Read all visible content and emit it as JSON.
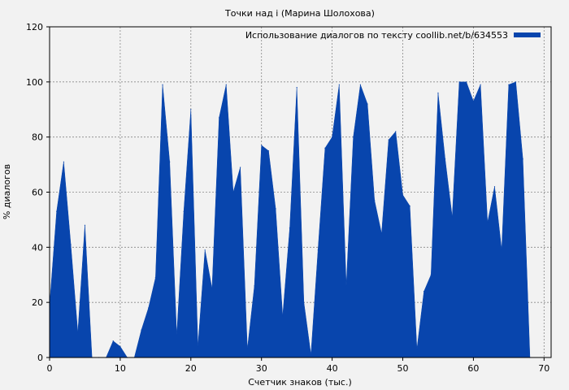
{
  "chart_data": {
    "type": "area",
    "title": "Точки над i (Марина Шолохова)",
    "xlabel": "Счетчик знаков (тыс.)",
    "ylabel": "% диалогов",
    "xlim": [
      0,
      71
    ],
    "ylim": [
      0,
      120
    ],
    "xticks": [
      0,
      10,
      20,
      30,
      40,
      50,
      60,
      70
    ],
    "yticks": [
      0,
      20,
      40,
      60,
      80,
      100,
      120
    ],
    "grid": true,
    "legend_position": "top-right",
    "colors": {
      "series": "#0845ad",
      "background": "#f2f2f2",
      "plot_background": "#f2f2f2",
      "grid": "#888888"
    },
    "series": [
      {
        "name": "Использование диалогов по тексту coollib.net/b/634553",
        "x": [
          0,
          1,
          2,
          3,
          4,
          5,
          6,
          7,
          8,
          9,
          10,
          11,
          12,
          13,
          14,
          15,
          16,
          17,
          18,
          19,
          20,
          21,
          22,
          23,
          24,
          25,
          26,
          27,
          28,
          29,
          30,
          31,
          32,
          33,
          34,
          35,
          36,
          37,
          38,
          39,
          40,
          41,
          42,
          43,
          44,
          45,
          46,
          47,
          48,
          49,
          50,
          51,
          52,
          53,
          54,
          55,
          56,
          57,
          58,
          59,
          60,
          61,
          62,
          63,
          64,
          65,
          66,
          67,
          68
        ],
        "y": [
          19,
          53,
          71,
          41,
          9,
          48,
          0,
          0,
          0,
          6,
          4,
          0,
          0,
          10,
          18,
          29,
          99,
          71,
          8,
          53,
          90,
          4,
          39,
          25,
          87,
          99,
          60,
          69,
          3,
          26,
          77,
          75,
          54,
          15,
          47,
          98,
          20,
          1,
          39,
          76,
          80,
          99,
          26,
          80,
          99,
          92,
          57,
          45,
          79,
          82,
          59,
          55,
          3,
          24,
          30,
          96,
          72,
          51,
          100,
          100,
          93,
          99,
          49,
          62,
          39,
          99,
          100,
          72,
          0
        ]
      }
    ]
  }
}
